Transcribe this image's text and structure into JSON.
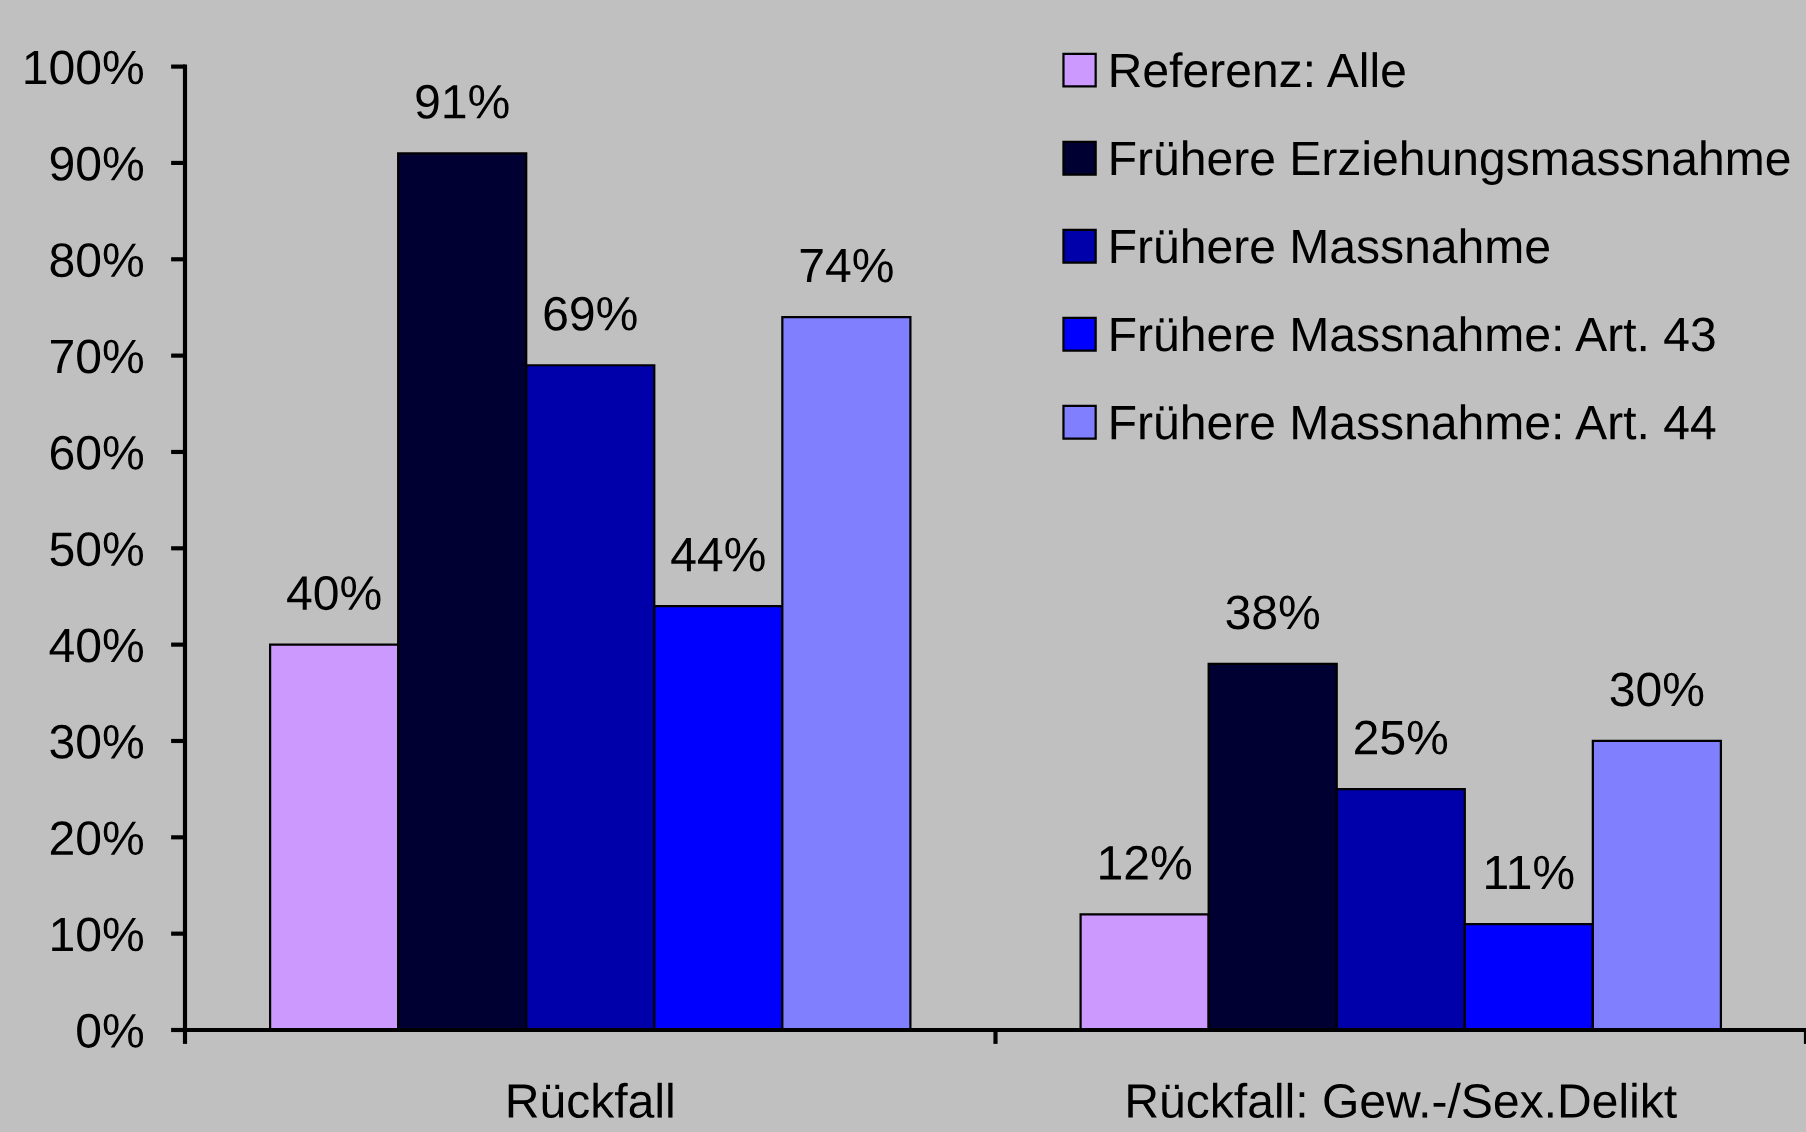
{
  "chart_data": {
    "type": "bar",
    "categories": [
      "Rückfall",
      "Rückfall: Gew.-/Sex.Delikt"
    ],
    "series": [
      {
        "name": "Referenz: Alle",
        "color": "#cc99ff",
        "values": [
          40,
          12
        ],
        "value_labels": [
          "40%",
          "12%"
        ]
      },
      {
        "name": "Frühere Erziehungsmassnahme",
        "color": "#000033",
        "values": [
          91,
          38
        ],
        "value_labels": [
          "91%",
          "38%"
        ]
      },
      {
        "name": "Frühere Massnahme",
        "color": "#0000aa",
        "values": [
          69,
          25
        ],
        "value_labels": [
          "69%",
          "25%"
        ]
      },
      {
        "name": "Frühere Massnahme: Art. 43",
        "color": "#0000ff",
        "values": [
          44,
          11
        ],
        "value_labels": [
          "44%",
          "11%"
        ]
      },
      {
        "name": "Frühere Massnahme: Art. 44",
        "color": "#8080ff",
        "values": [
          74,
          30
        ],
        "value_labels": [
          "74%",
          "30%"
        ]
      }
    ],
    "ylim": [
      0,
      100
    ],
    "yticks": [
      {
        "value": 0,
        "label": "0%"
      },
      {
        "value": 10,
        "label": "10%"
      },
      {
        "value": 20,
        "label": "20%"
      },
      {
        "value": 30,
        "label": "30%"
      },
      {
        "value": 40,
        "label": "40%"
      },
      {
        "value": 50,
        "label": "50%"
      },
      {
        "value": 60,
        "label": "60%"
      },
      {
        "value": 70,
        "label": "70%"
      },
      {
        "value": 80,
        "label": "80%"
      },
      {
        "value": 90,
        "label": "90%"
      },
      {
        "value": 100,
        "label": "100%"
      }
    ],
    "legend": "top right"
  }
}
